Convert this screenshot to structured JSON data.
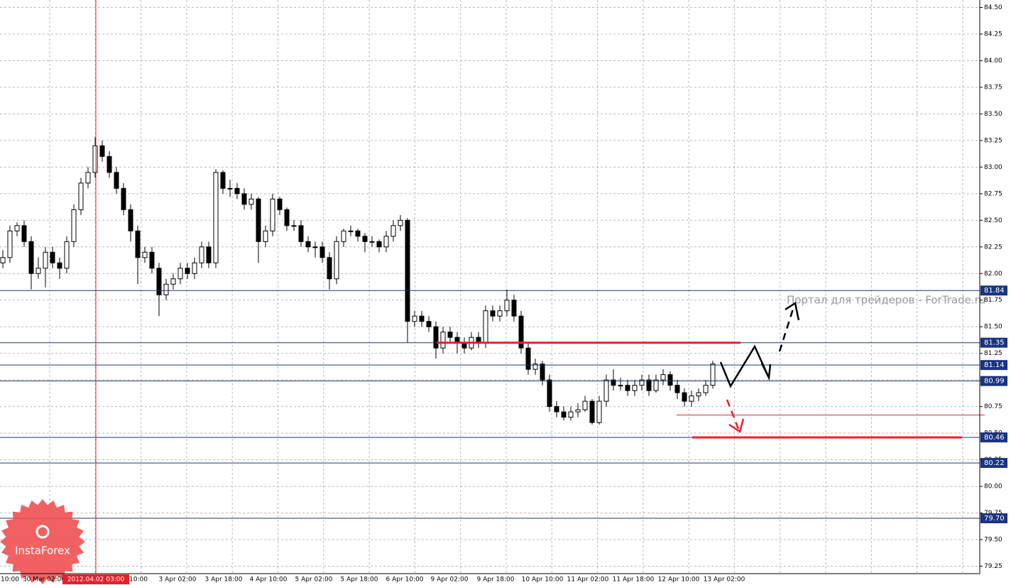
{
  "chart_data": {
    "type": "candlestick",
    "ylim": [
      79.18,
      84.57
    ],
    "yticks": [
      79.25,
      {
        "value": 79.5,
        "label": "79.50"
      },
      79.75,
      {
        "value": 80,
        "label": "80.00"
      },
      80.25,
      {
        "value": 80.5,
        "label": "80.50"
      },
      80.75,
      {
        "value": 81,
        "label": "81.00"
      },
      81.25,
      {
        "value": 81.5,
        "label": "81.50"
      },
      81.75,
      {
        "value": 82,
        "label": "82.00"
      },
      82.25,
      {
        "value": 82.5,
        "label": "82.50"
      },
      82.75,
      {
        "value": 83,
        "label": "83.00"
      },
      83.25,
      {
        "value": 83.5,
        "label": "83.50"
      },
      83.75,
      {
        "value": 84,
        "label": "84.00"
      },
      84.25,
      {
        "value": 84.5,
        "label": "84.50"
      }
    ],
    "xticks": [
      "10:00",
      "30 Mar 02:00",
      "2012.04.02 03:00",
      "10:00",
      "3 Apr 02:00",
      "3 Apr 18:00",
      "4 Apr 10:00",
      "5 Apr 02:00",
      "5 Apr 18:00",
      "6 Apr 10:00",
      "9 Apr 02:00",
      "9 Apr 18:00",
      "10 Apr 10:00",
      "11 Apr 02:00",
      "11 Apr 18:00",
      "12 Apr 10:00",
      "13 Apr 02:00"
    ],
    "grid": true,
    "levels": [
      81.84,
      81.35,
      81.14,
      80.99,
      80.46,
      80.22,
      {
        "value": 79.7,
        "label": "79.70"
      }
    ],
    "level_color": "#1a3480",
    "red_levels": [
      81.35,
      80.67,
      80.46
    ],
    "red_color": "#e8202a",
    "watermark": "Портал для трейдеров - ForTrade.ru",
    "logo": "InstaForex",
    "candles": [
      [
        82.1,
        82.22,
        82.05,
        82.15
      ],
      [
        82.15,
        82.45,
        82.1,
        82.4
      ],
      [
        82.4,
        82.48,
        82.35,
        82.45
      ],
      [
        82.45,
        82.5,
        82.25,
        82.3
      ],
      [
        82.3,
        82.35,
        81.85,
        82.0
      ],
      [
        82.0,
        82.15,
        81.95,
        82.05
      ],
      [
        82.05,
        82.25,
        81.87,
        82.2
      ],
      [
        82.2,
        82.25,
        82.05,
        82.1
      ],
      [
        82.1,
        82.15,
        81.95,
        82.05
      ],
      [
        82.05,
        82.35,
        82.0,
        82.3
      ],
      [
        82.3,
        82.65,
        82.25,
        82.6
      ],
      [
        82.6,
        82.9,
        82.55,
        82.85
      ],
      [
        82.85,
        83.0,
        82.8,
        82.95
      ],
      [
        82.95,
        83.28,
        82.9,
        83.2
      ],
      [
        83.2,
        83.25,
        83.05,
        83.1
      ],
      [
        83.1,
        83.15,
        82.9,
        82.95
      ],
      [
        82.95,
        83.0,
        82.75,
        82.8
      ],
      [
        82.8,
        82.85,
        82.55,
        82.6
      ],
      [
        82.6,
        82.65,
        82.3,
        82.4
      ],
      [
        82.4,
        82.45,
        81.9,
        82.15
      ],
      [
        82.15,
        82.25,
        82.1,
        82.2
      ],
      [
        82.2,
        82.25,
        82.0,
        82.05
      ],
      [
        82.05,
        82.1,
        81.6,
        81.8
      ],
      [
        81.8,
        81.95,
        81.75,
        81.9
      ],
      [
        81.9,
        82.0,
        81.85,
        81.95
      ],
      [
        81.95,
        82.1,
        81.9,
        82.05
      ],
      [
        82.05,
        82.1,
        81.95,
        82.0
      ],
      [
        82.0,
        82.15,
        81.95,
        82.1
      ],
      [
        82.1,
        82.3,
        82.05,
        82.25
      ],
      [
        82.25,
        82.3,
        82.05,
        82.1
      ],
      [
        82.1,
        82.98,
        82.05,
        82.95
      ],
      [
        82.95,
        82.97,
        82.75,
        82.8
      ],
      [
        82.8,
        82.88,
        82.72,
        82.8
      ],
      [
        82.8,
        82.85,
        82.7,
        82.75
      ],
      [
        82.75,
        82.8,
        82.6,
        82.65
      ],
      [
        82.65,
        82.75,
        82.6,
        82.7
      ],
      [
        82.7,
        82.72,
        82.1,
        82.3
      ],
      [
        82.3,
        82.45,
        82.25,
        82.4
      ],
      [
        82.4,
        82.75,
        82.35,
        82.7
      ],
      [
        82.7,
        82.72,
        82.55,
        82.6
      ],
      [
        82.6,
        82.62,
        82.4,
        82.45
      ],
      [
        82.45,
        82.5,
        82.4,
        82.45
      ],
      [
        82.45,
        82.5,
        82.25,
        82.3
      ],
      [
        82.3,
        82.35,
        82.2,
        82.25
      ],
      [
        82.25,
        82.3,
        82.15,
        82.25
      ],
      [
        82.25,
        82.3,
        82.1,
        82.15
      ],
      [
        82.15,
        82.2,
        81.85,
        81.95
      ],
      [
        81.95,
        82.35,
        81.9,
        82.3
      ],
      [
        82.3,
        82.42,
        82.25,
        82.4
      ],
      [
        82.4,
        82.45,
        82.35,
        82.4
      ],
      [
        82.4,
        82.42,
        82.3,
        82.35
      ],
      [
        82.35,
        82.38,
        82.2,
        82.3
      ],
      [
        82.3,
        82.35,
        82.25,
        82.3
      ],
      [
        82.3,
        82.32,
        82.2,
        82.25
      ],
      [
        82.25,
        82.4,
        82.2,
        82.35
      ],
      [
        82.35,
        82.5,
        82.3,
        82.45
      ],
      [
        82.45,
        82.55,
        82.4,
        82.5
      ],
      [
        82.5,
        82.52,
        81.35,
        81.55
      ],
      [
        81.55,
        81.65,
        81.5,
        81.6
      ],
      [
        81.6,
        81.65,
        81.5,
        81.55
      ],
      [
        81.55,
        81.6,
        81.45,
        81.5
      ],
      [
        81.5,
        81.55,
        81.2,
        81.3
      ],
      [
        81.3,
        81.5,
        81.25,
        81.45
      ],
      [
        81.45,
        81.5,
        81.35,
        81.4
      ],
      [
        81.4,
        81.45,
        81.25,
        81.35
      ],
      [
        81.35,
        81.4,
        81.25,
        81.3
      ],
      [
        81.3,
        81.45,
        81.28,
        81.4
      ],
      [
        81.4,
        81.45,
        81.3,
        81.35
      ],
      [
        81.35,
        81.7,
        81.3,
        81.65
      ],
      [
        81.65,
        81.7,
        81.55,
        81.6
      ],
      [
        81.6,
        81.7,
        81.55,
        81.65
      ],
      [
        81.65,
        81.85,
        81.6,
        81.75
      ],
      [
        81.75,
        81.8,
        81.55,
        81.6
      ],
      [
        81.6,
        81.65,
        81.25,
        81.3
      ],
      [
        81.3,
        81.35,
        81.05,
        81.1
      ],
      [
        81.1,
        81.2,
        81.05,
        81.15
      ],
      [
        81.15,
        81.18,
        80.95,
        81.0
      ],
      [
        81.0,
        81.05,
        80.7,
        80.75
      ],
      [
        80.75,
        80.8,
        80.65,
        80.7
      ],
      [
        80.7,
        80.75,
        80.62,
        80.65
      ],
      [
        80.65,
        80.75,
        80.62,
        80.7
      ],
      [
        80.7,
        80.78,
        80.65,
        80.72
      ],
      [
        80.72,
        80.85,
        80.7,
        80.8
      ],
      [
        80.8,
        80.82,
        80.58,
        80.6
      ],
      [
        80.6,
        80.85,
        80.58,
        80.8
      ],
      [
        80.8,
        81.05,
        80.75,
        81.0
      ],
      [
        81.0,
        81.1,
        80.9,
        80.95
      ],
      [
        80.95,
        81.02,
        80.9,
        80.95
      ],
      [
        80.95,
        81.0,
        80.85,
        80.9
      ],
      [
        80.9,
        81.0,
        80.85,
        80.95
      ],
      [
        80.95,
        81.05,
        80.9,
        81.0
      ],
      [
        81.0,
        81.05,
        80.85,
        80.9
      ],
      [
        80.9,
        81.05,
        80.88,
        81.0
      ],
      [
        81.0,
        81.1,
        80.95,
        81.05
      ],
      [
        81.05,
        81.08,
        80.9,
        80.95
      ],
      [
        80.95,
        81.0,
        80.82,
        80.88
      ],
      [
        80.88,
        80.92,
        80.75,
        80.8
      ],
      [
        80.8,
        80.9,
        80.75,
        80.85
      ],
      [
        80.85,
        80.92,
        80.8,
        80.88
      ],
      [
        80.88,
        81.0,
        80.85,
        80.95
      ],
      [
        80.95,
        81.18,
        80.92,
        81.15
      ]
    ]
  }
}
